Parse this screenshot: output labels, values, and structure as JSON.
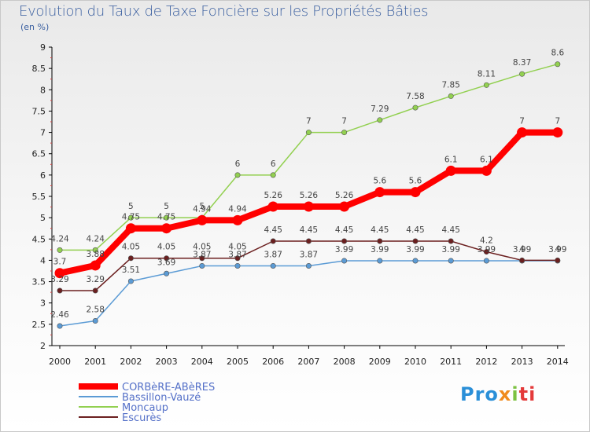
{
  "title": "Evolution du Taux de Taxe Foncière sur les Propriétés Bâties",
  "subtitle": "(en %)",
  "logo": [
    "Pro",
    "x",
    "i",
    "ti"
  ],
  "chart_data": {
    "type": "line",
    "x": [
      2000,
      2001,
      2002,
      2003,
      2004,
      2005,
      2006,
      2007,
      2008,
      2009,
      2010,
      2011,
      2012,
      2013,
      2014
    ],
    "ylim": [
      2,
      9
    ],
    "yticks": [
      "2",
      "2.5",
      "3",
      "3.5",
      "4",
      "4.5",
      "5",
      "5.5",
      "6",
      "6.5",
      "7",
      "7.5",
      "8",
      "8.5",
      "9"
    ],
    "grid": false,
    "legend": "bottom-left",
    "series": [
      {
        "name": "CORBèRE-ABèRES",
        "color": "#ff0000",
        "width": 8,
        "values": [
          3.7,
          3.88,
          4.75,
          4.75,
          4.94,
          4.94,
          5.26,
          5.26,
          5.26,
          5.6,
          5.6,
          6.1,
          6.1,
          7,
          7
        ],
        "labels": [
          "3.7",
          "3.88",
          "4.75",
          "4.75",
          "4.94",
          "4.94",
          "5.26",
          "5.26",
          "5.26",
          "5.6",
          "5.6",
          "6.1",
          "6.1",
          "7",
          "7"
        ]
      },
      {
        "name": "Bassillon-Vauzé",
        "color": "#5b9bd5",
        "width": 1.5,
        "values": [
          2.46,
          2.58,
          3.51,
          3.69,
          3.87,
          3.87,
          3.87,
          3.87,
          3.99,
          3.99,
          3.99,
          3.99,
          3.99,
          3.99,
          3.99
        ],
        "labels": [
          "2.46",
          "2.58",
          "3.51",
          "3.69",
          "3.87",
          "3.87",
          "3.87",
          "3.87",
          "3.99",
          "3.99",
          "3.99",
          "3.99",
          "3.99",
          "3.99",
          "3.99"
        ]
      },
      {
        "name": "Moncaup",
        "color": "#92d050",
        "width": 1.5,
        "values": [
          4.24,
          4.24,
          5,
          5,
          5,
          6,
          6,
          7,
          7,
          7.29,
          7.58,
          7.85,
          8.11,
          8.37,
          8.6
        ],
        "labels": [
          "4.24",
          "4.24",
          "5",
          "5",
          "5",
          "6",
          "6",
          "7",
          "7",
          "7.29",
          "7.58",
          "7.85",
          "8.11",
          "8.37",
          "8.6"
        ]
      },
      {
        "name": "Escurès",
        "color": "#6b1f1f",
        "width": 1.5,
        "values": [
          3.29,
          3.29,
          4.05,
          4.05,
          4.05,
          4.05,
          4.45,
          4.45,
          4.45,
          4.45,
          4.45,
          4.45,
          4.2,
          4,
          4
        ],
        "labels": [
          "3.29",
          "3.29",
          "4.05",
          "4.05",
          "4.05",
          "4.05",
          "4.45",
          "4.45",
          "4.45",
          "4.45",
          "4.45",
          "4.45",
          "4.2",
          "4",
          "4"
        ]
      }
    ]
  }
}
